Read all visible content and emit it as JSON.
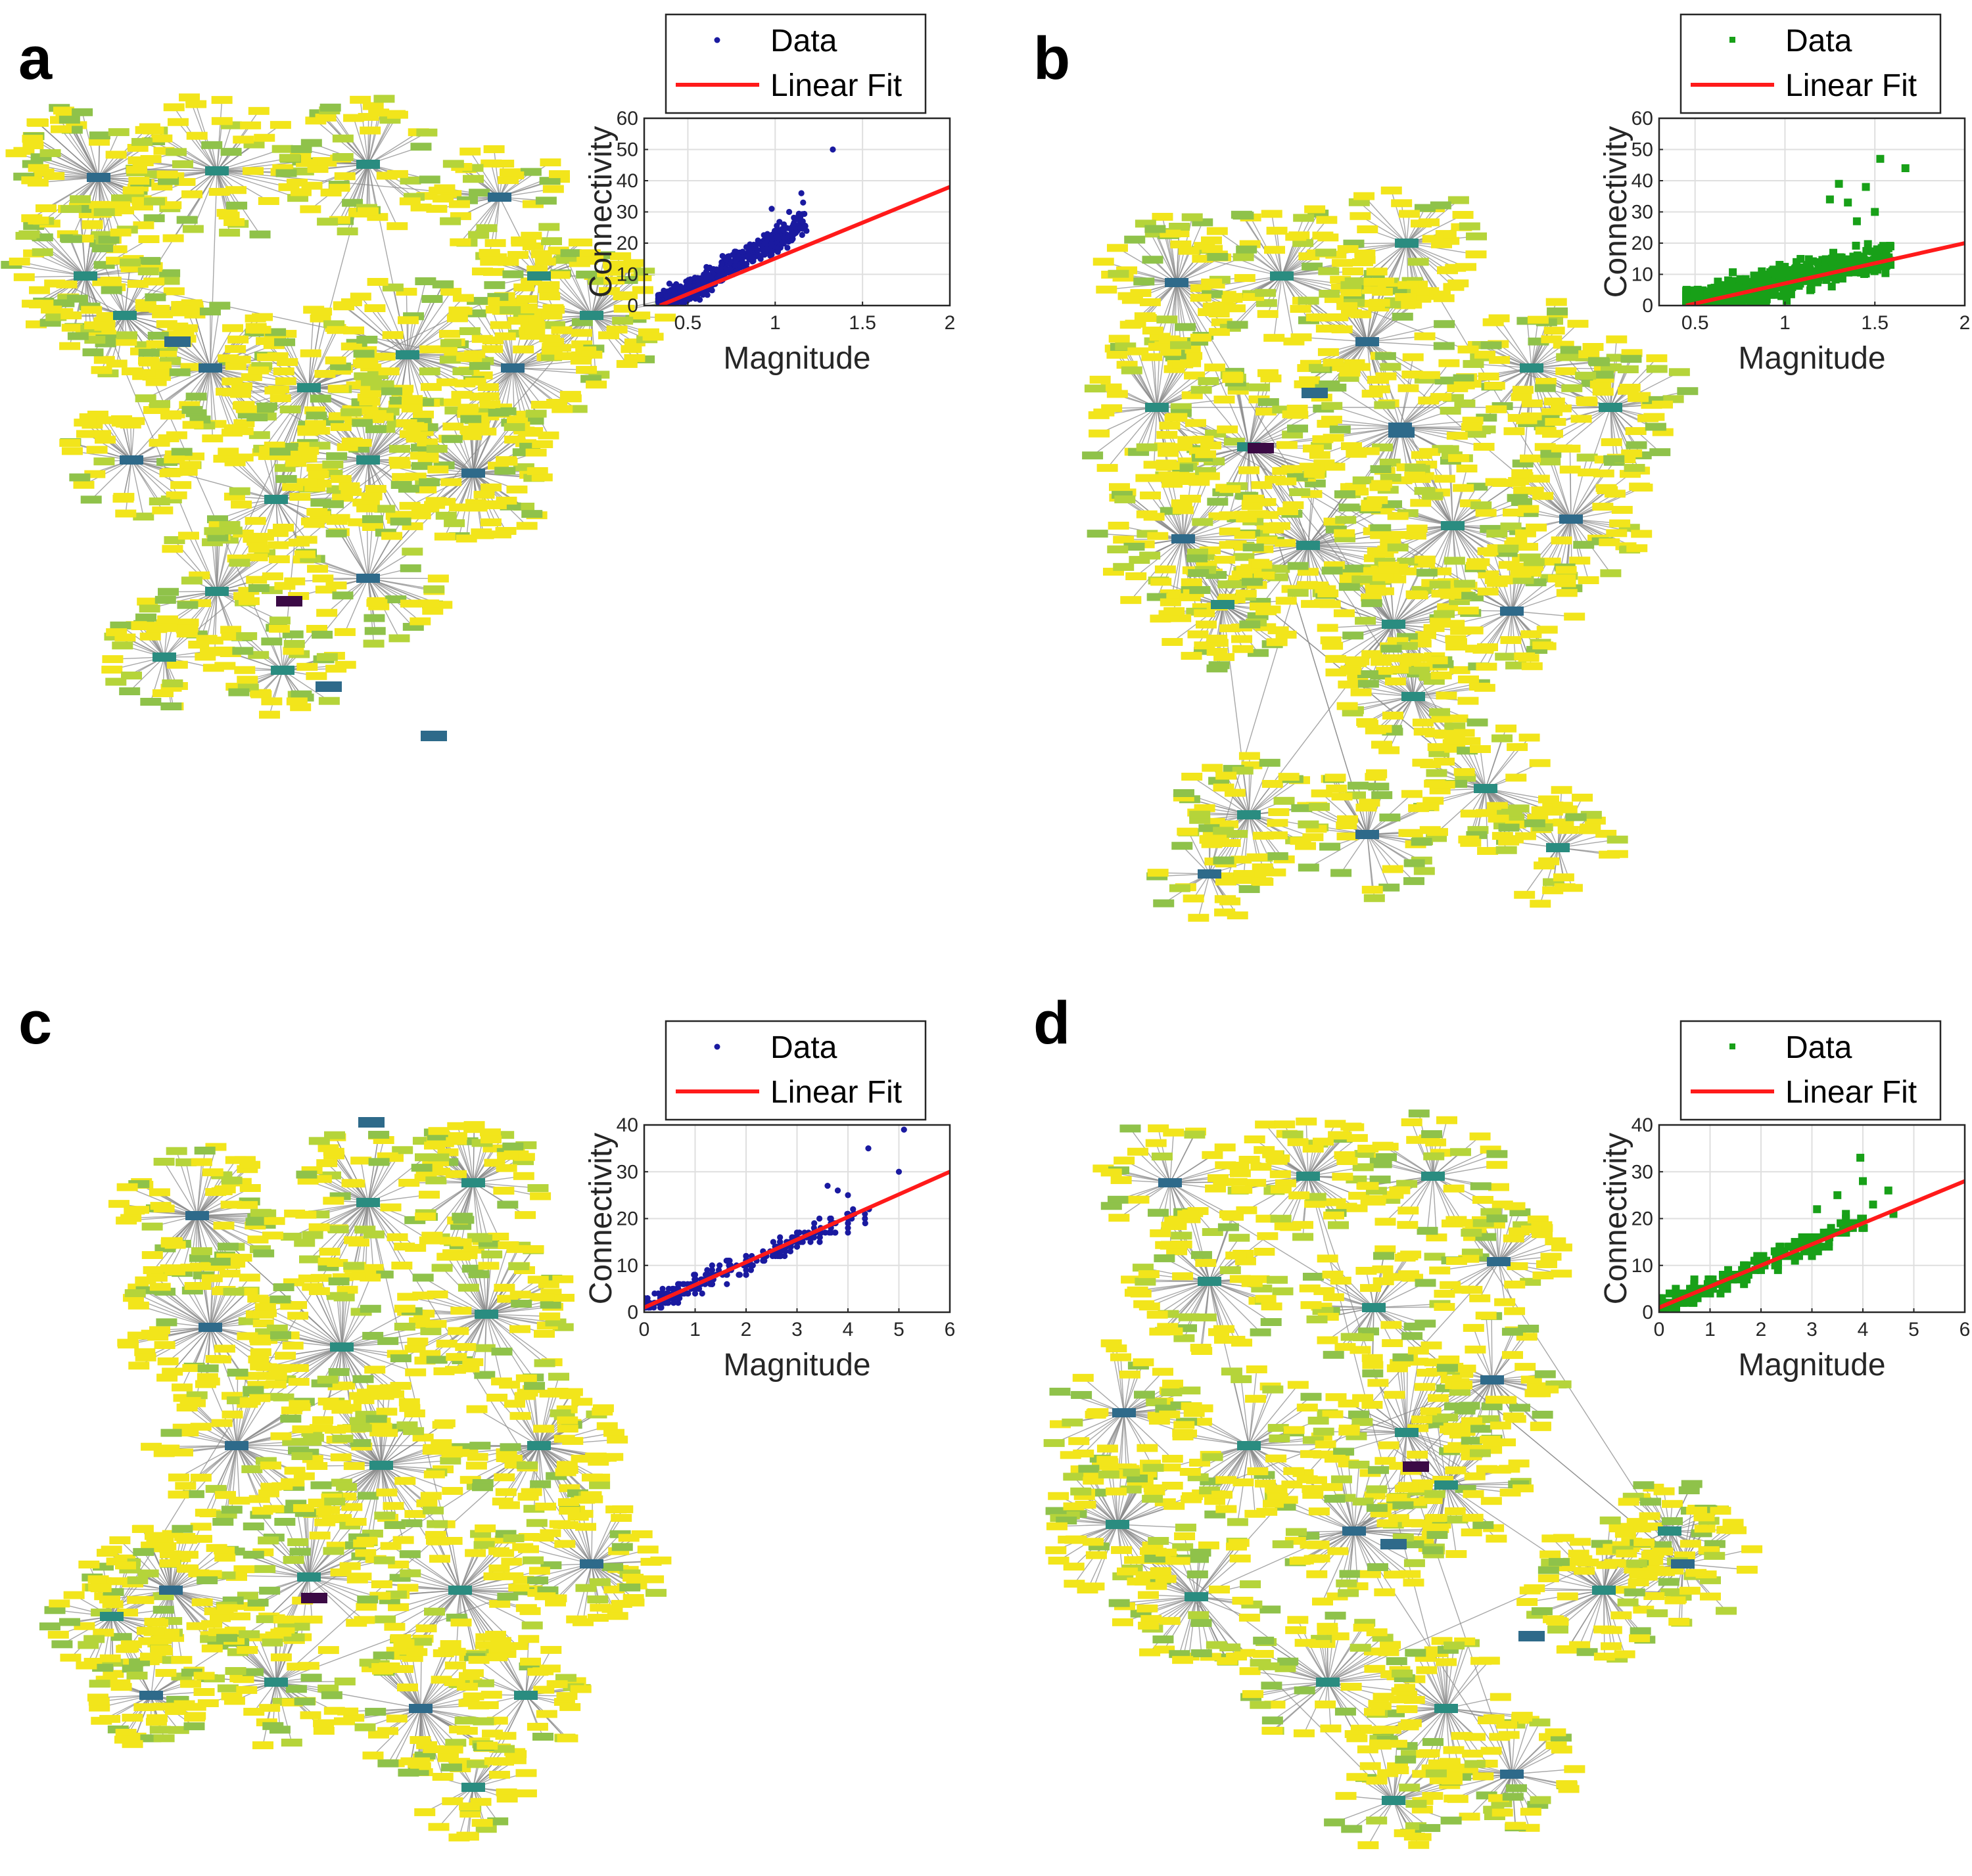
{
  "colors": {
    "blue": "#1a1aa0",
    "green": "#18a018",
    "fit": "#ff1a1a",
    "node_yellow": "#f2e51b",
    "node_lime": "#b5d43a",
    "node_olive": "#8fc24a",
    "node_teal": "#2a8c80",
    "node_dark": "#2e6a8a",
    "node_hub": "#3b0a45",
    "edge": "#8a8a8a"
  },
  "panels": [
    {
      "label": "a",
      "marker": "dot",
      "color": "#1a1aa0",
      "network": {
        "seed": 11,
        "nodes": 1100
      }
    },
    {
      "label": "b",
      "marker": "square",
      "color": "#18a018",
      "network": {
        "seed": 23,
        "nodes": 1200
      }
    },
    {
      "label": "c",
      "marker": "dot",
      "color": "#1a1aa0",
      "network": {
        "seed": 37,
        "nodes": 1150
      }
    },
    {
      "label": "d",
      "marker": "square",
      "color": "#18a018",
      "network": {
        "seed": 51,
        "nodes": 1050
      }
    }
  ],
  "chart_data": [
    {
      "type": "scatter",
      "panel": "a",
      "xlabel": "Magnitude",
      "ylabel": "Connectivity",
      "xlim": [
        0.25,
        2
      ],
      "ylim": [
        0,
        60
      ],
      "xticks": [
        0.5,
        1,
        1.5,
        2
      ],
      "xtick_labels": [
        "0.5",
        "1",
        "1.5",
        "2"
      ],
      "yticks": [
        0,
        10,
        20,
        30,
        40,
        50,
        60
      ],
      "ytick_labels": [
        "0",
        "10",
        "20",
        "30",
        "40",
        "50",
        "60"
      ],
      "grid": true,
      "legend": [
        "Data",
        "Linear Fit"
      ],
      "legend_position": "top",
      "series": [
        {
          "name": "Data",
          "style": "dot",
          "cloud": {
            "x_min": 0.33,
            "x_max": 1.18,
            "slope": 33,
            "intercept": -12,
            "spread": 7,
            "count": 600
          },
          "points": [
            [
              1.33,
              50
            ],
            [
              1.15,
              36
            ],
            [
              1.16,
              33
            ],
            [
              1.08,
              30
            ],
            [
              1.12,
              28
            ],
            [
              1.05,
              26
            ],
            [
              0.98,
              31
            ],
            [
              1.02,
              24
            ]
          ]
        },
        {
          "name": "Linear Fit",
          "style": "line",
          "x": [
            0.34,
            2.0
          ],
          "y": [
            0,
            38
          ]
        }
      ]
    },
    {
      "type": "scatter",
      "panel": "b",
      "xlabel": "Magnitude",
      "ylabel": "Connectivity",
      "xlim": [
        0.3,
        2
      ],
      "ylim": [
        0,
        60
      ],
      "xticks": [
        0.5,
        1,
        1.5,
        2
      ],
      "xtick_labels": [
        "0.5",
        "1",
        "1.5",
        "2"
      ],
      "yticks": [
        0,
        10,
        20,
        30,
        40,
        50,
        60
      ],
      "ytick_labels": [
        "0",
        "10",
        "20",
        "30",
        "40",
        "50",
        "60"
      ],
      "grid": true,
      "legend": [
        "Data",
        "Linear Fit"
      ],
      "legend_position": "top",
      "series": [
        {
          "name": "Data",
          "style": "square",
          "cloud": {
            "x_min": 0.45,
            "x_max": 1.6,
            "slope": 14,
            "intercept": -6,
            "spread": 8,
            "count": 650
          },
          "points": [
            [
              1.53,
              47
            ],
            [
              1.67,
              44
            ],
            [
              1.3,
              39
            ],
            [
              1.45,
              38
            ],
            [
              1.35,
              33
            ],
            [
              1.5,
              30
            ],
            [
              1.25,
              34
            ],
            [
              1.4,
              27
            ]
          ]
        },
        {
          "name": "Linear Fit",
          "style": "line",
          "x": [
            0.45,
            2.0
          ],
          "y": [
            0,
            20
          ]
        }
      ]
    },
    {
      "type": "scatter",
      "panel": "c",
      "xlabel": "Magnitude",
      "ylabel": "Connectivity",
      "xlim": [
        0,
        6
      ],
      "ylim": [
        0,
        40
      ],
      "xticks": [
        0,
        1,
        2,
        3,
        4,
        5,
        6
      ],
      "xtick_labels": [
        "0",
        "1",
        "2",
        "3",
        "4",
        "5",
        "6"
      ],
      "yticks": [
        0,
        10,
        20,
        30,
        40
      ],
      "ytick_labels": [
        "0",
        "10",
        "20",
        "30",
        "40"
      ],
      "grid": true,
      "legend": [
        "Data",
        "Linear Fit"
      ],
      "legend_position": "top",
      "series": [
        {
          "name": "Data",
          "style": "dot",
          "cloud": {
            "x_min": 0.0,
            "x_max": 4.2,
            "slope": 4.8,
            "intercept": 1,
            "spread": 4,
            "count": 380
          },
          "points": [
            [
              5.1,
              39
            ],
            [
              5.0,
              30
            ],
            [
              4.4,
              35
            ],
            [
              4.0,
              25
            ],
            [
              3.8,
              26
            ],
            [
              4.1,
              22
            ],
            [
              3.6,
              27
            ]
          ]
        },
        {
          "name": "Linear Fit",
          "style": "line",
          "x": [
            0,
            6
          ],
          "y": [
            1,
            30
          ]
        }
      ]
    },
    {
      "type": "scatter",
      "panel": "d",
      "xlabel": "Magnitude",
      "ylabel": "Connectivity",
      "xlim": [
        0,
        6
      ],
      "ylim": [
        0,
        40
      ],
      "xticks": [
        0,
        1,
        2,
        3,
        4,
        5,
        6
      ],
      "xtick_labels": [
        "0",
        "1",
        "2",
        "3",
        "4",
        "5",
        "6"
      ],
      "yticks": [
        0,
        10,
        20,
        30,
        40
      ],
      "ytick_labels": [
        "0",
        "10",
        "20",
        "30",
        "40"
      ],
      "grid": true,
      "legend": [
        "Data",
        "Linear Fit"
      ],
      "legend_position": "top",
      "series": [
        {
          "name": "Data",
          "style": "square",
          "cloud": {
            "x_min": 0.0,
            "x_max": 4.0,
            "slope": 4.6,
            "intercept": 1,
            "spread": 4,
            "count": 360
          },
          "points": [
            [
              3.95,
              33
            ],
            [
              4.5,
              26
            ],
            [
              4.6,
              21
            ],
            [
              4.2,
              23
            ],
            [
              3.5,
              25
            ],
            [
              4.0,
              28
            ],
            [
              3.1,
              22
            ]
          ]
        },
        {
          "name": "Linear Fit",
          "style": "line",
          "x": [
            0,
            6
          ],
          "y": [
            1,
            28
          ]
        }
      ]
    }
  ]
}
